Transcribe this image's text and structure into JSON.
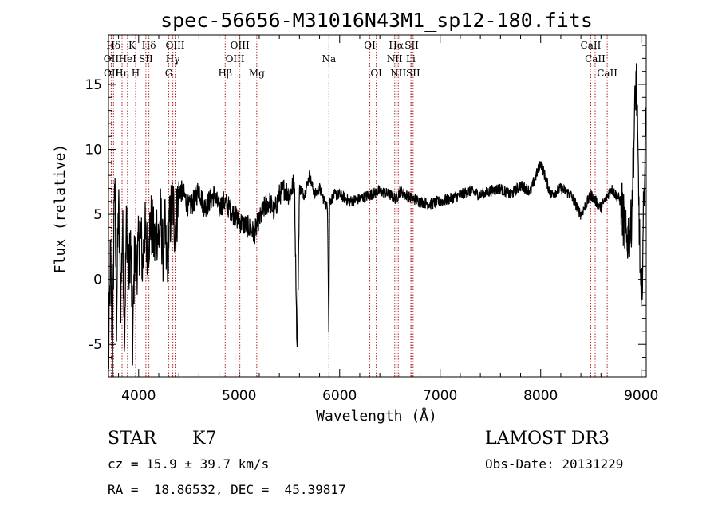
{
  "chart_data": {
    "type": "line",
    "title": "spec-56656-M31016N43M1_sp12-180.fits",
    "xlabel": "Wavelength (Å)",
    "ylabel": "Flux (relative)",
    "xlim": [
      3700,
      9050
    ],
    "ylim": [
      -7.5,
      18.8
    ],
    "x_ticks": [
      4000,
      5000,
      6000,
      7000,
      8000,
      9000
    ],
    "y_ticks": [
      -5,
      0,
      5,
      10,
      15
    ],
    "grid": false,
    "series": [
      {
        "name": "spectrum",
        "x": [
          3700,
          3720,
          3740,
          3760,
          3780,
          3800,
          3820,
          3840,
          3860,
          3880,
          3900,
          3920,
          3940,
          3960,
          3980,
          4000,
          4020,
          4040,
          4060,
          4080,
          4100,
          4120,
          4140,
          4160,
          4180,
          4200,
          4220,
          4240,
          4260,
          4280,
          4300,
          4320,
          4340,
          4360,
          4380,
          4400,
          4450,
          4500,
          4550,
          4600,
          4650,
          4700,
          4750,
          4800,
          4850,
          4900,
          4950,
          5000,
          5050,
          5100,
          5150,
          5180,
          5200,
          5250,
          5300,
          5350,
          5400,
          5450,
          5500,
          5550,
          5577,
          5600,
          5650,
          5700,
          5750,
          5800,
          5850,
          5880,
          5893,
          5900,
          5950,
          6000,
          6100,
          6200,
          6300,
          6400,
          6500,
          6563,
          6600,
          6700,
          6800,
          6900,
          7000,
          7100,
          7200,
          7300,
          7400,
          7500,
          7600,
          7700,
          7800,
          7900,
          8000,
          8100,
          8200,
          8300,
          8400,
          8500,
          8600,
          8700,
          8800,
          8850,
          8900,
          8950,
          9000,
          9050
        ],
        "values": [
          -7,
          2,
          -6,
          8.5,
          -3,
          6,
          -2,
          4,
          -4,
          5,
          0,
          3,
          -5,
          2,
          1,
          2.5,
          3.5,
          1,
          4,
          2,
          3,
          4.5,
          3.5,
          2.5,
          4,
          3,
          5,
          2,
          4,
          1,
          3.5,
          5,
          6,
          4,
          5,
          7,
          6.5,
          5.5,
          6,
          7,
          5.5,
          6,
          6.5,
          5.5,
          6,
          5.5,
          5,
          4.5,
          4.2,
          4,
          3.5,
          4.2,
          4.5,
          5.5,
          6,
          5.2,
          6.5,
          7,
          6.5,
          7.5,
          -6,
          7,
          6.5,
          8,
          6.5,
          7,
          6,
          5.5,
          -4.5,
          6,
          6.5,
          6.5,
          6,
          6.2,
          6.5,
          6.8,
          6.5,
          6.2,
          6.8,
          6.3,
          6,
          5.8,
          6,
          6.2,
          6.5,
          6.8,
          6.5,
          6.8,
          7,
          6.5,
          7.2,
          6.8,
          9,
          6.5,
          7,
          6.5,
          5,
          6.5,
          5.5,
          7,
          6,
          3,
          4,
          16,
          -3,
          14
        ]
      }
    ],
    "lines": [
      {
        "label": "Hδ",
        "x": 3750,
        "tier": 0
      },
      {
        "label": "K",
        "x": 3934,
        "tier": 0
      },
      {
        "label": "Hδ",
        "x": 4102,
        "tier": 0
      },
      {
        "label": "OIII",
        "x": 4363,
        "tier": 0
      },
      {
        "label": "OIII",
        "x": 5007,
        "tier": 0
      },
      {
        "label": "OI",
        "x": 6300,
        "tier": 0
      },
      {
        "label": "Hα",
        "x": 6563,
        "tier": 0
      },
      {
        "label": "SII",
        "x": 6717,
        "tier": 0
      },
      {
        "label": "CaII",
        "x": 8498,
        "tier": 0
      },
      {
        "label": "OII",
        "x": 3727,
        "tier": 1
      },
      {
        "label": "HeI",
        "x": 3889,
        "tier": 1
      },
      {
        "label": "SII",
        "x": 4072,
        "tier": 1
      },
      {
        "label": "Hγ",
        "x": 4340,
        "tier": 1
      },
      {
        "label": "OIII",
        "x": 4959,
        "tier": 1
      },
      {
        "label": "Na",
        "x": 5893,
        "tier": 1
      },
      {
        "label": "NII",
        "x": 6548,
        "tier": 1
      },
      {
        "label": "Li",
        "x": 6708,
        "tier": 1
      },
      {
        "label": "CaII",
        "x": 8542,
        "tier": 1
      },
      {
        "label": "OII",
        "x": 3729,
        "tier": 2
      },
      {
        "label": "Hη",
        "x": 3835,
        "tier": 2
      },
      {
        "label": "H",
        "x": 3970,
        "tier": 2
      },
      {
        "label": "G",
        "x": 4300,
        "tier": 2
      },
      {
        "label": "Hβ",
        "x": 4861,
        "tier": 2
      },
      {
        "label": "Mg",
        "x": 5175,
        "tier": 2
      },
      {
        "label": "OI",
        "x": 6364,
        "tier": 2
      },
      {
        "label": "NII",
        "x": 6583,
        "tier": 2
      },
      {
        "label": "SII",
        "x": 6731,
        "tier": 2
      },
      {
        "label": "CaII",
        "x": 8662,
        "tier": 2
      }
    ]
  },
  "info": {
    "class_label": "STAR",
    "subclass": "K7",
    "survey": "LAMOST DR3",
    "cz": "cz = 15.9 ± 39.7 km/s",
    "obs_date": "Obs-Date: 20131229",
    "radec": "RA =  18.86532, DEC =  45.39817"
  },
  "colors": {
    "line_marker": "#b22222",
    "spectrum": "#000000",
    "axes": "#000000"
  }
}
